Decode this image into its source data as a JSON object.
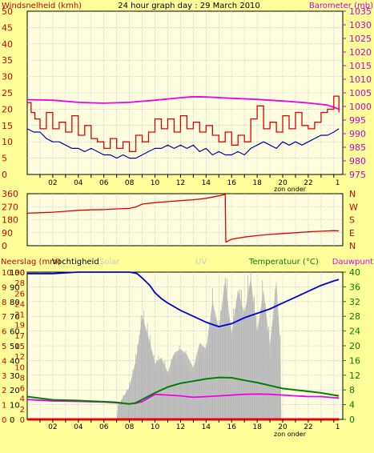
{
  "colors": {
    "background": "#ffff99",
    "plot_background": "#ffffe0",
    "grid": "#b8b8e0",
    "wind_gust": "#e00000",
    "wind_avg": "#0000aa",
    "barometer": "#ee00ee",
    "direction": "#e00000",
    "humidity": "#0000dd",
    "solar": "#c0c0c0",
    "rain": "#ee0000",
    "temperature": "#008000",
    "dewpoint": "#ee00ee",
    "left_axis": "#cc0000",
    "right_axis_baro": "#cc00cc",
    "right_axis_dir": "#cc0000",
    "right_axis_temp": "#008000",
    "solar_label": "#c8c8c8",
    "uv_label": "#c8c8c8"
  },
  "header": {
    "left_label": "Windsnelheid (kmh)",
    "title": "24 hour graph day : 29 March 2010",
    "right_label": "Barometer (mb)"
  },
  "x_axis": {
    "tick_labels": [
      "02",
      "04",
      "06",
      "08",
      "10",
      "12",
      "14",
      "16",
      "18",
      "20",
      "22",
      "1"
    ],
    "sunset_label": "zon onder"
  },
  "chart_data": [
    {
      "type": "line",
      "name": "wind-barometer",
      "x_range": [
        0,
        24.7
      ],
      "y_left": {
        "label": "Windsnelheid (kmh)",
        "range": [
          0,
          50
        ],
        "ticks": [
          0,
          5,
          10,
          15,
          20,
          25,
          30,
          35,
          40,
          45,
          50
        ]
      },
      "y_right": {
        "label": "Barometer (mb)",
        "range": [
          975,
          1035
        ],
        "ticks": [
          975,
          980,
          985,
          990,
          995,
          1000,
          1005,
          1010,
          1015,
          1020,
          1025,
          1030,
          1035
        ]
      },
      "series": [
        {
          "axis": "right",
          "color_key": "barometer",
          "x": [
            0,
            2,
            4,
            6,
            8,
            10,
            12,
            13,
            14,
            16,
            18,
            20,
            22,
            23.5,
            24.4
          ],
          "y": [
            1002.5,
            1002.3,
            1001.5,
            1001.2,
            1001.5,
            1002.3,
            1003.2,
            1003.6,
            1003.5,
            1003.0,
            1002.6,
            1002.0,
            1001.3,
            1000.5,
            999.0
          ]
        },
        {
          "axis": "left",
          "color_key": "wind_gust",
          "x": [
            0,
            0.3,
            0.6,
            1,
            1.5,
            2,
            2.5,
            3,
            3.5,
            4,
            4.5,
            5,
            5.5,
            6,
            6.5,
            7,
            7.5,
            8,
            8.5,
            9,
            9.5,
            10,
            10.5,
            11,
            11.5,
            12,
            12.5,
            13,
            13.5,
            14,
            14.5,
            15,
            15.5,
            16,
            16.5,
            17,
            17.5,
            18,
            18.5,
            19,
            19.5,
            20,
            20.5,
            21,
            21.5,
            22,
            22.5,
            23,
            23.5,
            24,
            24.4
          ],
          "y": [
            22,
            19,
            17,
            14,
            19,
            14,
            16,
            13,
            18,
            12,
            15,
            11,
            10,
            8,
            11,
            8,
            10,
            7,
            12,
            10,
            13,
            17,
            14,
            17,
            13,
            18,
            14,
            16,
            13,
            15,
            12,
            10,
            13,
            9,
            12,
            10,
            17,
            21,
            14,
            16,
            13,
            18,
            14,
            19,
            15,
            14,
            16,
            19,
            20,
            24,
            19
          ]
        },
        {
          "axis": "left",
          "color_key": "wind_avg",
          "x": [
            0,
            0.5,
            1,
            1.5,
            2,
            2.5,
            3,
            3.5,
            4,
            4.5,
            5,
            5.5,
            6,
            6.5,
            7,
            7.5,
            8,
            8.5,
            9,
            9.5,
            10,
            10.5,
            11,
            11.5,
            12,
            12.5,
            13,
            13.5,
            14,
            14.5,
            15,
            15.5,
            16,
            16.5,
            17,
            17.5,
            18,
            18.5,
            19,
            19.5,
            20,
            20.5,
            21,
            21.5,
            22,
            22.5,
            23,
            23.5,
            24,
            24.4
          ],
          "y": [
            14,
            13,
            13,
            11,
            10,
            10,
            9,
            8,
            8,
            7,
            8,
            7,
            6,
            6,
            5,
            6,
            5,
            5,
            6,
            7,
            8,
            8,
            9,
            8,
            9,
            8,
            9,
            7,
            8,
            6,
            7,
            6,
            6,
            7,
            6,
            8,
            9,
            10,
            9,
            8,
            10,
            9,
            10,
            9,
            10,
            11,
            12,
            12,
            13,
            14
          ]
        }
      ]
    },
    {
      "type": "line",
      "name": "wind-direction",
      "x_range": [
        0,
        24.7
      ],
      "y_left": {
        "range": [
          0,
          360
        ],
        "ticks": [
          0,
          90,
          180,
          270,
          360
        ]
      },
      "y_right_labels": [
        "N",
        "W",
        "S",
        "E",
        "N"
      ],
      "series": [
        {
          "color_key": "direction",
          "x": [
            0,
            1,
            2,
            3,
            4,
            5,
            6,
            7,
            8,
            8.5,
            9,
            10,
            11,
            12,
            13,
            14,
            15,
            15.5,
            15.55,
            16,
            17,
            18,
            19,
            20,
            21,
            22,
            23,
            24,
            24.4
          ],
          "y": [
            225,
            228,
            232,
            238,
            245,
            248,
            250,
            255,
            258,
            268,
            288,
            298,
            305,
            312,
            318,
            328,
            345,
            355,
            25,
            45,
            60,
            70,
            78,
            84,
            90,
            96,
            100,
            104,
            103
          ]
        }
      ]
    },
    {
      "type": "area",
      "name": "rain-humidity-solar-temperature",
      "x_range": [
        0,
        24.7
      ],
      "y_left_outer": {
        "label": "Neerslag (mm)",
        "range": [
          0,
          10
        ],
        "ticks": [
          0,
          1,
          2,
          3,
          4,
          5,
          6,
          7,
          8,
          9,
          10
        ]
      },
      "y_left_inner": {
        "label": "Vochtigheid",
        "range": [
          0,
          100
        ],
        "ticks": [
          0,
          10,
          20,
          30,
          40,
          50,
          60,
          70,
          80,
          90,
          100
        ]
      },
      "y_inner_col2": {
        "label": "Solar",
        "ticks": [
          0,
          2,
          4,
          6,
          8,
          10,
          12,
          15,
          17,
          19,
          21,
          24,
          26,
          28,
          30
        ]
      },
      "uv_label": "UV",
      "y_right": {
        "label": "Temperatuur (°C)",
        "range": [
          0,
          40
        ],
        "ticks": [
          0,
          4,
          8,
          12,
          16,
          20,
          24,
          28,
          32,
          36,
          40
        ]
      },
      "dewpoint_label": "Dauwpunt",
      "series": [
        {
          "color_key": "humidity",
          "axis": "humidity",
          "x": [
            0,
            2,
            4,
            6,
            7,
            8,
            8.6,
            9,
            9.6,
            10,
            10.5,
            11,
            12,
            13,
            14,
            15,
            16,
            17,
            18,
            19,
            20,
            21,
            22,
            23,
            24,
            24.4
          ],
          "y": [
            99,
            99,
            100,
            100,
            100,
            100,
            99,
            96,
            91,
            86,
            82,
            79,
            74,
            70,
            66,
            63,
            65,
            69,
            72,
            75,
            79,
            83,
            87,
            91,
            94,
            95
          ]
        },
        {
          "color_key": "temperature",
          "axis": "temperature",
          "x": [
            0,
            2,
            4,
            6,
            7,
            8,
            8.5,
            9,
            10,
            11,
            12,
            13,
            14,
            15,
            16,
            17,
            18,
            19,
            20,
            21,
            22,
            23,
            24,
            24.4
          ],
          "y": [
            6.2,
            5.3,
            5.1,
            4.8,
            4.6,
            4.2,
            4.5,
            5.4,
            7.2,
            8.8,
            9.8,
            10.4,
            11.0,
            11.4,
            11.3,
            10.6,
            10.0,
            9.2,
            8.4,
            8.0,
            7.6,
            7.2,
            6.6,
            6.4
          ]
        },
        {
          "color_key": "dewpoint",
          "axis": "temperature",
          "x": [
            0,
            2,
            4,
            6,
            7,
            8,
            8.5,
            9,
            10,
            11,
            12,
            13,
            14,
            15,
            16,
            17,
            18,
            19,
            20,
            21,
            22,
            23,
            24,
            24.4
          ],
          "y": [
            5.4,
            5.0,
            4.9,
            4.7,
            4.5,
            4.2,
            4.4,
            4.8,
            6.8,
            6.6,
            6.4,
            6.0,
            6.2,
            6.4,
            6.6,
            6.8,
            6.9,
            6.8,
            6.6,
            6.4,
            6.2,
            6.2,
            5.9,
            5.8
          ]
        },
        {
          "color_key": "solar",
          "axis": "solar_area",
          "x": [
            0,
            7,
            7.1,
            7.5,
            8,
            8.5,
            9,
            9.5,
            10,
            10.5,
            11,
            11.5,
            12,
            12.5,
            13,
            13.5,
            14,
            14.5,
            15,
            15.5,
            16,
            16.5,
            17,
            17.5,
            18,
            18.5,
            19,
            19.5,
            19.8,
            19.9,
            24.4
          ],
          "y": [
            0,
            0,
            9,
            15,
            22,
            40,
            70,
            56,
            38,
            42,
            32,
            45,
            48,
            44,
            35,
            52,
            48,
            80,
            62,
            95,
            58,
            88,
            72,
            96,
            60,
            88,
            50,
            95,
            52,
            0,
            0
          ]
        },
        {
          "color_key": "rain",
          "axis": "rain",
          "x": [
            0,
            24.4
          ],
          "y": [
            0,
            0
          ]
        }
      ]
    }
  ]
}
